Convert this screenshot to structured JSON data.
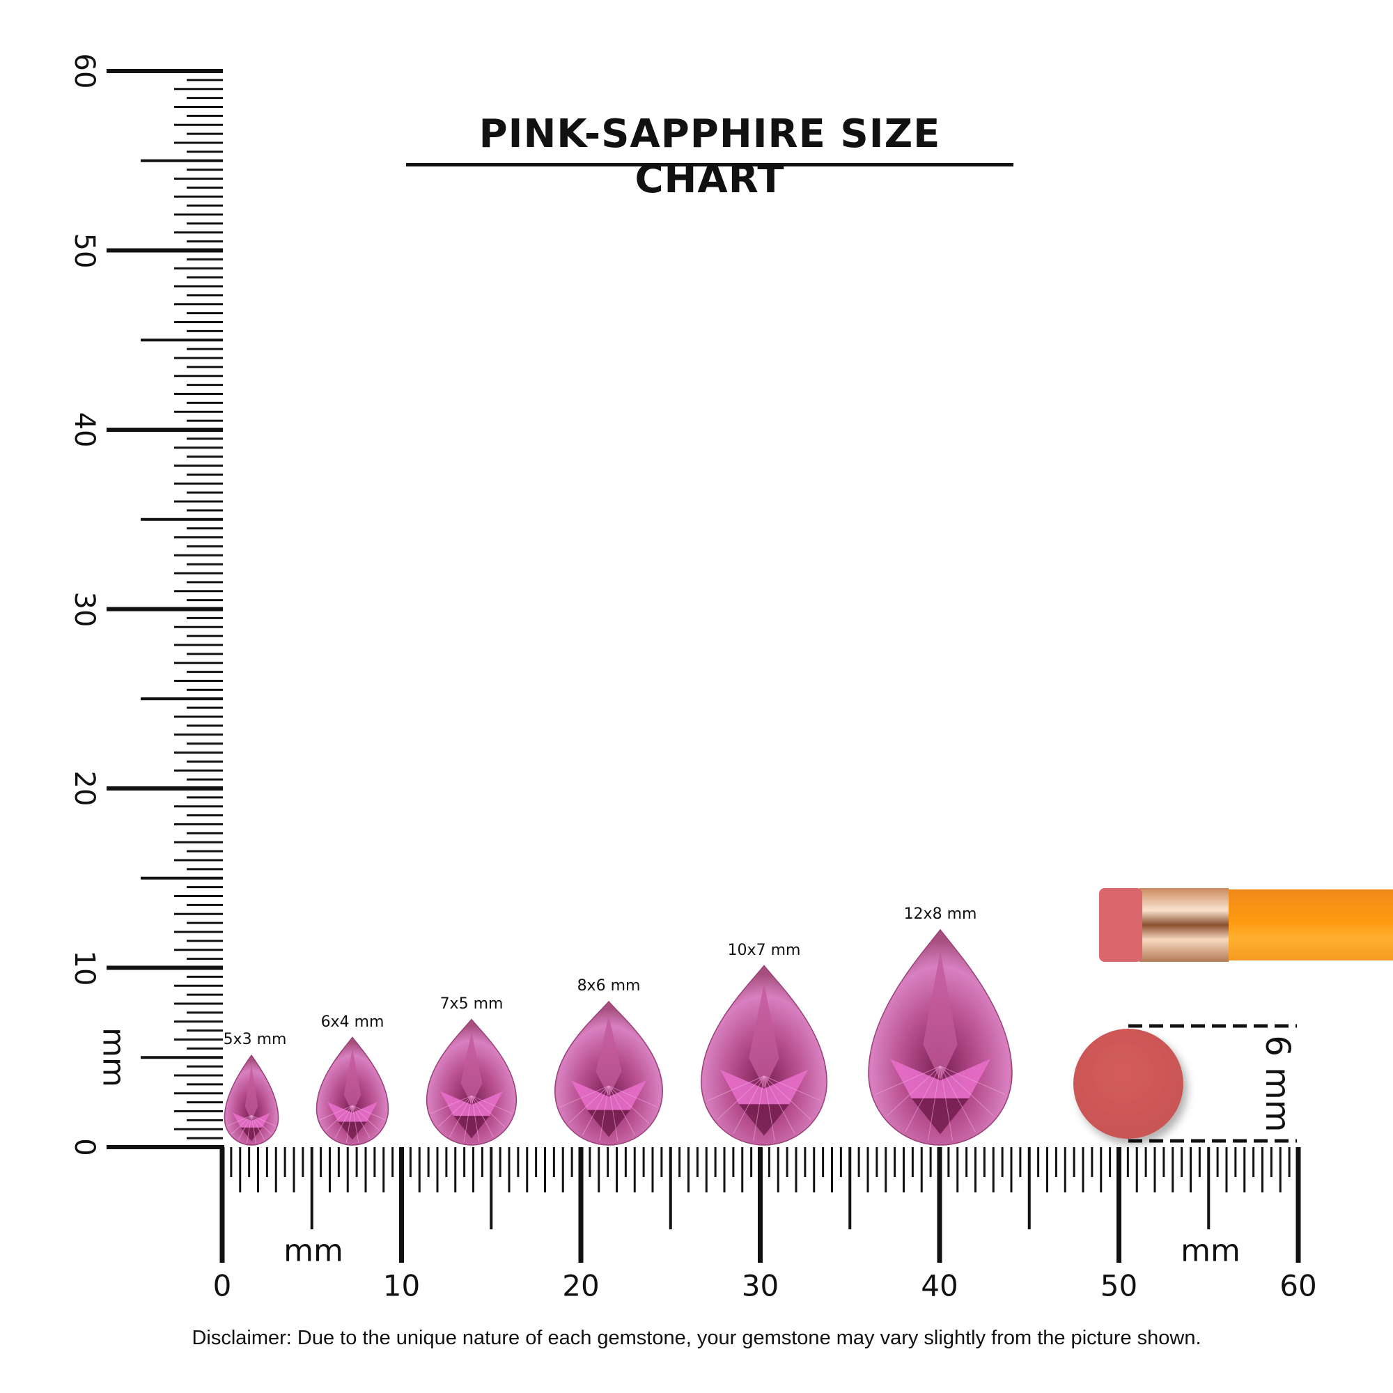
{
  "title": "PINK-SAPPHIRE SIZE CHART",
  "vertical_ruler": {
    "labels": [
      "0",
      "10",
      "20",
      "30",
      "40",
      "50",
      "60"
    ],
    "unit": "mm",
    "range_mm": [
      0,
      60
    ]
  },
  "horizontal_ruler": {
    "labels": [
      "0",
      "10",
      "20",
      "30",
      "40",
      "50",
      "60"
    ],
    "unit_left": "mm",
    "unit_right": "mm",
    "range_mm": [
      0,
      60
    ]
  },
  "gems": [
    {
      "label": "5x3 mm",
      "length_mm": 5,
      "width_mm": 3
    },
    {
      "label": "6x4 mm",
      "length_mm": 6,
      "width_mm": 4
    },
    {
      "label": "7x5 mm",
      "length_mm": 7,
      "width_mm": 5
    },
    {
      "label": "8x6 mm",
      "length_mm": 8,
      "width_mm": 6
    },
    {
      "label": "10x7 mm",
      "length_mm": 10,
      "width_mm": 7
    },
    {
      "label": "12x8 mm",
      "length_mm": 12,
      "width_mm": 8
    }
  ],
  "reference": {
    "eraser_label": "6 mm",
    "eraser_color": "#d05a5a",
    "pencil_color": "#f7931e"
  },
  "colors": {
    "gem_dark": "#8a2a62",
    "gem_mid": "#b8508f",
    "gem_light": "#e88fd0"
  },
  "disclaimer": "Disclaimer: Due to the unique nature of each gemstone, your gemstone may vary slightly from the picture shown."
}
